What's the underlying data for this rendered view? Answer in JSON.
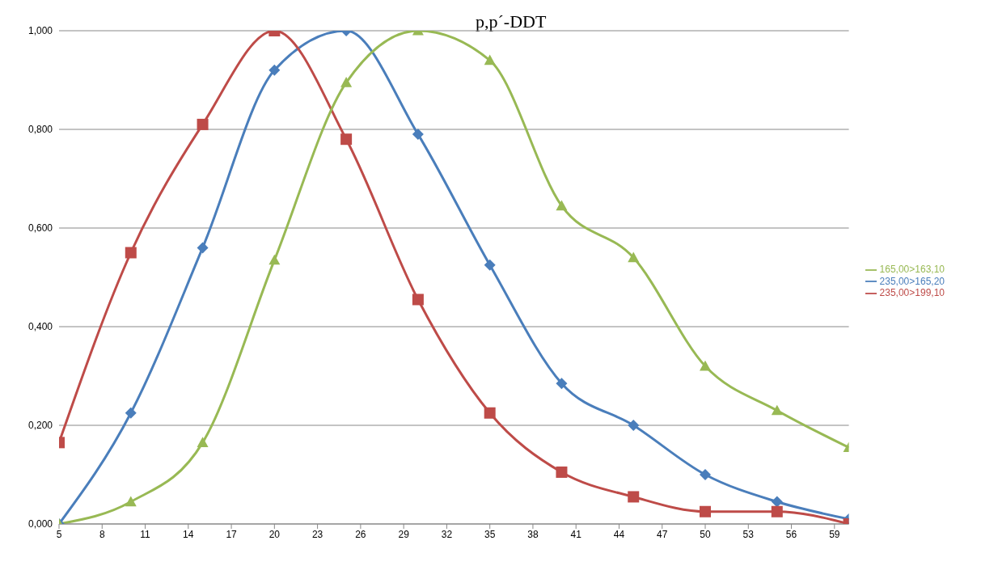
{
  "chart_data": {
    "type": "line",
    "title": "p,p´-DDT",
    "x": [
      5,
      10,
      15,
      20,
      25,
      30,
      35,
      40,
      45,
      50,
      55,
      60
    ],
    "xlim": [
      5,
      60
    ],
    "xticks": [
      5,
      8,
      11,
      14,
      17,
      20,
      23,
      26,
      29,
      32,
      35,
      38,
      41,
      44,
      47,
      50,
      53,
      56,
      59
    ],
    "ylim": [
      0,
      1
    ],
    "yticks": [
      {
        "value": 0,
        "label": "0,000"
      },
      {
        "value": 0.2,
        "label": "0,200"
      },
      {
        "value": 0.4,
        "label": "0,400"
      },
      {
        "value": 0.6,
        "label": "0,600"
      },
      {
        "value": 0.8,
        "label": "0,800"
      },
      {
        "value": 1,
        "label": "1,000"
      }
    ],
    "grid": "y",
    "legend": "right",
    "series": [
      {
        "name": "235,00>165,20",
        "color": "#4a7ebb",
        "marker": "diamond",
        "values": [
          0,
          0.225,
          0.56,
          0.92,
          1.0,
          0.79,
          0.525,
          0.285,
          0.2,
          0.1,
          0.045,
          0.01
        ]
      },
      {
        "name": "235,00>199,10",
        "color": "#be4b48",
        "marker": "square",
        "values": [
          0.165,
          0.55,
          0.81,
          1.0,
          0.78,
          0.455,
          0.225,
          0.105,
          0.055,
          0.025,
          0.025,
          0
        ]
      },
      {
        "name": "165,00>163,10",
        "color": "#98b954",
        "marker": "triangle",
        "values": [
          0,
          0.045,
          0.165,
          0.535,
          0.895,
          1.0,
          0.94,
          0.645,
          0.54,
          0.32,
          0.23,
          0.155
        ]
      }
    ]
  }
}
